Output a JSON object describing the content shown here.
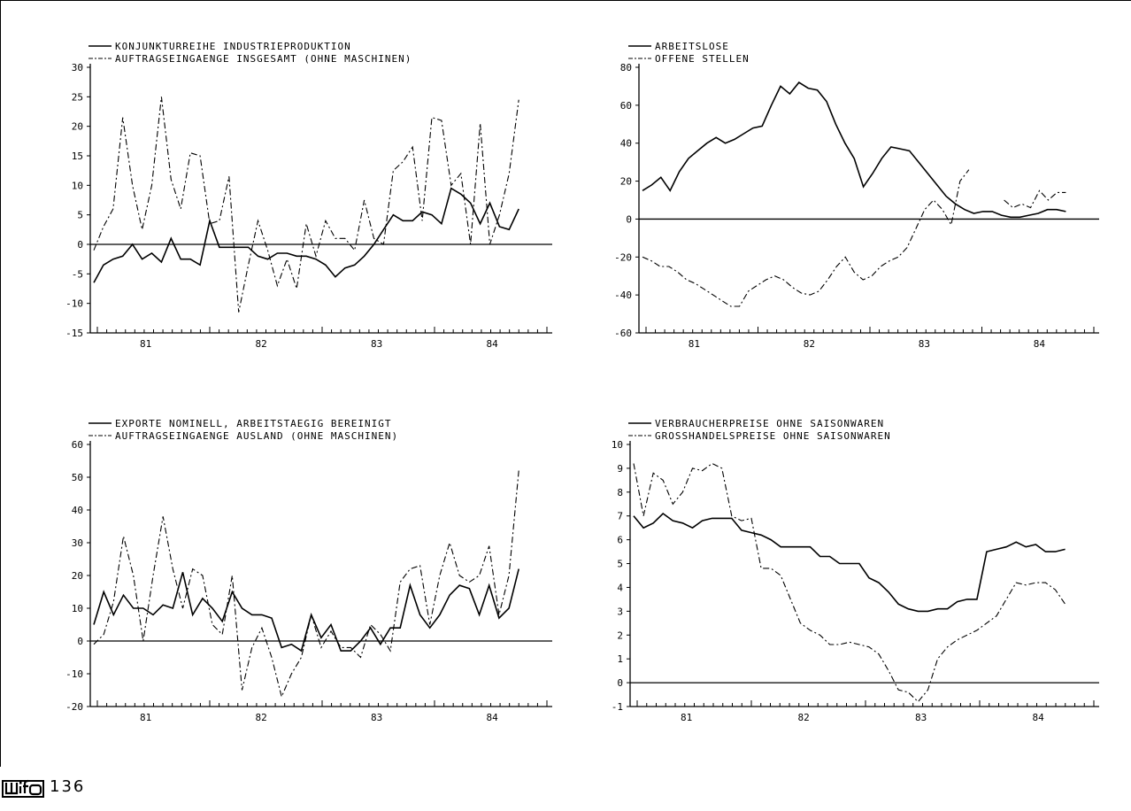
{
  "page_number": "136",
  "logo": {
    "text": "wifo",
    "icon": "wifo-logo-icon"
  },
  "chart_data": [
    {
      "type": "line",
      "title": "",
      "xlabel": "",
      "ylabel": "",
      "x_tick_labels": [
        "81",
        "82",
        "83",
        "84"
      ],
      "ylim": [
        -15,
        30
      ],
      "yticks": [
        -15,
        -10,
        -5,
        0,
        5,
        10,
        15,
        20,
        25,
        30
      ],
      "ytick_labels": [
        "-15",
        "-10",
        "-5",
        "0",
        "5",
        "10",
        "15",
        "20",
        "25",
        "30"
      ],
      "grid": false,
      "legend_position": "top",
      "series": [
        {
          "name": "KONJUNKTURREIHE INDUSTRIEPRODUKTION",
          "style": "solid",
          "values": [
            -6.5,
            -3.5,
            -2.5,
            -2,
            0,
            -2.5,
            -1.5,
            -3,
            1,
            -2.5,
            -2.5,
            -3.5,
            4,
            -0.5,
            -0.5,
            -0.5,
            -0.5,
            -2,
            -2.5,
            -1.5,
            -1.5,
            -2,
            -2,
            -2.5,
            -3.5,
            -5.5,
            -4,
            -3.5,
            -2,
            0,
            2.5,
            5,
            4,
            4,
            5.5,
            5,
            3.5,
            9.5,
            8.5,
            7,
            3.5,
            7,
            3,
            2.5,
            6
          ]
        },
        {
          "name": "AUFTRAGSEINGAENGE INSGESAMT (OHNE MASCHINEN)",
          "style": "dashdot",
          "values": [
            -1,
            3,
            6,
            21.5,
            10,
            2.5,
            10,
            25,
            11,
            6,
            15.5,
            15,
            3.5,
            4,
            11.5,
            -11.5,
            -3.5,
            4,
            -1,
            -7,
            -2.5,
            -7.5,
            3.5,
            -2,
            4,
            1,
            1,
            -1,
            7.5,
            1,
            0,
            12.5,
            14,
            16.5,
            4,
            21.5,
            21,
            10,
            12,
            0,
            20.5,
            0,
            5,
            12,
            24.5
          ]
        }
      ]
    },
    {
      "type": "line",
      "title": "",
      "xlabel": "",
      "ylabel": "",
      "x_tick_labels": [
        "81",
        "82",
        "83",
        "84"
      ],
      "ylim": [
        -60,
        80
      ],
      "yticks": [
        -60,
        -40,
        -20,
        0,
        20,
        40,
        60,
        80
      ],
      "ytick_labels": [
        "-60",
        "-40",
        "-20",
        "0",
        "20",
        "40",
        "60",
        "80"
      ],
      "grid": false,
      "legend_position": "top",
      "series": [
        {
          "name": "ARBEITSLOSE",
          "style": "solid",
          "values": [
            15,
            18,
            22,
            15,
            25,
            32,
            36,
            40,
            43,
            40,
            42,
            45,
            48,
            49,
            60,
            70,
            66,
            72,
            69,
            68,
            62,
            50,
            40,
            32,
            17,
            24,
            32,
            38,
            37,
            36,
            30,
            24,
            18,
            12,
            8,
            5,
            3,
            4,
            4,
            2,
            1,
            1,
            2,
            3,
            5,
            5,
            4
          ]
        },
        {
          "name": "OFFENE STELLEN",
          "style": "dashdot",
          "values": [
            -20,
            -22,
            -25,
            -25,
            -28,
            -32,
            -34,
            -37,
            -40,
            -43,
            -46,
            -46,
            -38,
            -35,
            -32,
            -30,
            -32,
            -36,
            -39,
            -40,
            -38,
            -32,
            -25,
            -20,
            -28,
            -32,
            -30,
            -25,
            -22,
            -20,
            -15,
            -5,
            5,
            10,
            5,
            -3,
            20,
            26,
            null,
            null,
            null,
            10,
            6,
            8,
            6,
            15,
            10,
            14,
            14
          ]
        }
      ]
    },
    {
      "type": "line",
      "title": "",
      "xlabel": "",
      "ylabel": "",
      "x_tick_labels": [
        "81",
        "82",
        "83",
        "84"
      ],
      "ylim": [
        -20,
        60
      ],
      "yticks": [
        -20,
        -10,
        0,
        10,
        20,
        30,
        40,
        50,
        60
      ],
      "ytick_labels": [
        "-20",
        "-10",
        "0",
        "10",
        "20",
        "30",
        "40",
        "50",
        "60"
      ],
      "grid": false,
      "legend_position": "top",
      "series": [
        {
          "name": "EXPORTE NOMINELL, ARBEITSTAEGIG BEREINIGT",
          "style": "solid",
          "values": [
            5,
            15,
            8,
            14,
            10,
            10,
            8,
            11,
            10,
            21,
            8,
            13,
            10,
            6,
            15,
            10,
            8,
            8,
            7,
            -2,
            -1,
            -3,
            8,
            1,
            5,
            -3,
            -3,
            0,
            4,
            -1,
            4,
            4,
            17,
            8,
            4,
            8,
            14,
            17,
            16,
            8,
            17,
            7,
            10,
            22
          ]
        },
        {
          "name": "AUFTRAGSEINGAENGE AUSLAND (OHNE MASCHINEN)",
          "style": "dashdot",
          "values": [
            -1,
            2,
            12,
            32,
            20,
            0,
            20,
            38,
            22,
            10,
            22,
            20,
            5,
            2,
            20,
            -15,
            -2,
            4,
            -5,
            -17,
            -10,
            -5,
            8,
            -2,
            3,
            -2,
            -2,
            -5,
            5,
            2,
            -3,
            18,
            22,
            23,
            5,
            20,
            30,
            20,
            18,
            20,
            29,
            8,
            20,
            52
          ]
        }
      ]
    },
    {
      "type": "line",
      "title": "",
      "xlabel": "",
      "ylabel": "",
      "x_tick_labels": [
        "81",
        "82",
        "83",
        "84"
      ],
      "ylim": [
        -1,
        10
      ],
      "yticks": [
        -1,
        0,
        1,
        2,
        3,
        4,
        5,
        6,
        7,
        8,
        9,
        10
      ],
      "ytick_labels": [
        "-1",
        "0",
        "1",
        "2",
        "3",
        "4",
        "5",
        "6",
        "7",
        "8",
        "9",
        "10"
      ],
      "grid": false,
      "legend_position": "top",
      "series": [
        {
          "name": "VERBRAUCHERPREISE OHNE SAISONWAREN",
          "style": "solid",
          "values": [
            7,
            6.5,
            6.7,
            7.1,
            6.8,
            6.7,
            6.5,
            6.8,
            6.9,
            6.9,
            6.9,
            6.4,
            6.3,
            6.2,
            6,
            5.7,
            5.7,
            5.7,
            5.7,
            5.3,
            5.3,
            5,
            5,
            5,
            4.4,
            4.2,
            3.8,
            3.3,
            3.1,
            3,
            3,
            3.1,
            3.1,
            3.4,
            3.5,
            3.5,
            5.5,
            5.6,
            5.7,
            5.9,
            5.7,
            5.8,
            5.5,
            5.5,
            5.6
          ]
        },
        {
          "name": "GROSSHANDELSPREISE OHNE SAISONWAREN",
          "style": "dashdot",
          "values": [
            9.2,
            7,
            8.8,
            8.5,
            7.5,
            8,
            9,
            8.9,
            9.2,
            9,
            7,
            6.8,
            6.9,
            4.8,
            4.8,
            4.5,
            3.5,
            2.5,
            2.2,
            2,
            1.6,
            1.6,
            1.7,
            1.6,
            1.5,
            1.2,
            0.5,
            -0.3,
            -0.4,
            -0.8,
            -0.3,
            1,
            1.5,
            1.8,
            2,
            2.2,
            2.5,
            2.8,
            3.5,
            4.2,
            4.1,
            4.2,
            4.2,
            3.9,
            3.3
          ]
        }
      ]
    }
  ]
}
